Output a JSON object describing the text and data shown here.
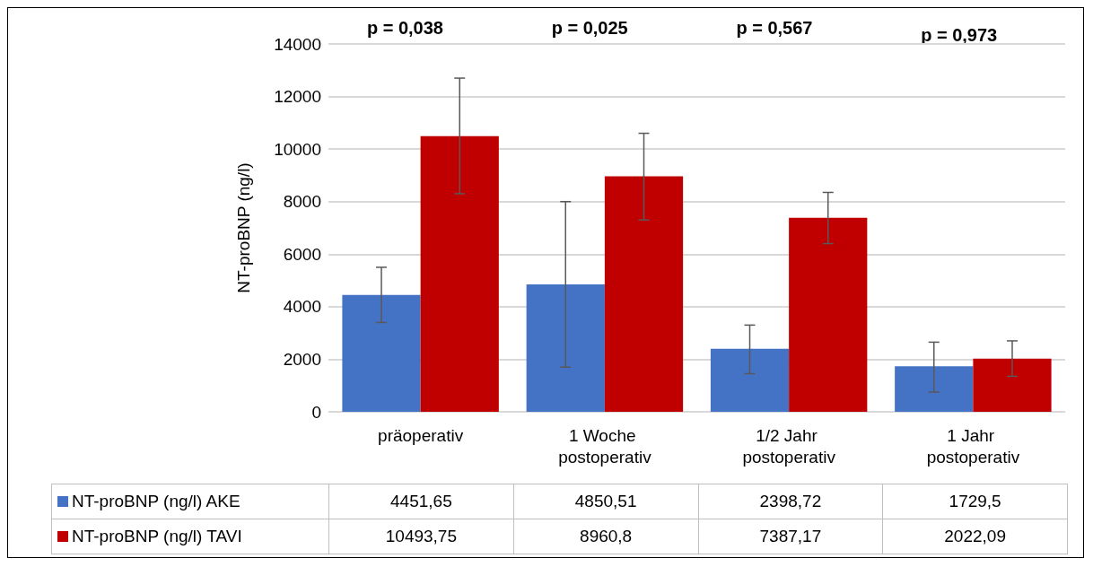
{
  "chart_data": {
    "type": "bar",
    "categories": [
      "präoperativ",
      "1 Woche postoperativ",
      "1/2 Jahr postoperativ",
      "1 Jahr postoperativ"
    ],
    "series": [
      {
        "name": "NT-proBNP (ng/l) AKE",
        "color": "#4472c4",
        "values": [
          4451.65,
          4850.51,
          2398.72,
          1729.5
        ],
        "value_labels": [
          "4451,65",
          "4850,51",
          "2398,72",
          "1729,5"
        ],
        "errors": [
          [
            3400,
            5500
          ],
          [
            1700,
            8000
          ],
          [
            1450,
            3300
          ],
          [
            750,
            2650
          ]
        ]
      },
      {
        "name": "NT-proBNP (ng/l) TAVI",
        "color": "#c00000",
        "values": [
          10493.75,
          8960.8,
          7387.17,
          2022.09
        ],
        "value_labels": [
          "10493,75",
          "8960,8",
          "7387,17",
          "2022,09"
        ],
        "errors": [
          [
            8300,
            12700
          ],
          [
            7300,
            10600
          ],
          [
            6400,
            8350
          ],
          [
            1350,
            2700
          ]
        ]
      }
    ],
    "ylabel": "NT-proBNP (ng/l)",
    "ylim": [
      0,
      14000
    ],
    "yticks": [
      0,
      2000,
      4000,
      6000,
      8000,
      10000,
      12000,
      14000
    ],
    "grid": "y",
    "legend": "bottom",
    "annotations": [
      "p = 0,038",
      "p = 0,025",
      "p = 0,567",
      "p = 0,973"
    ]
  }
}
